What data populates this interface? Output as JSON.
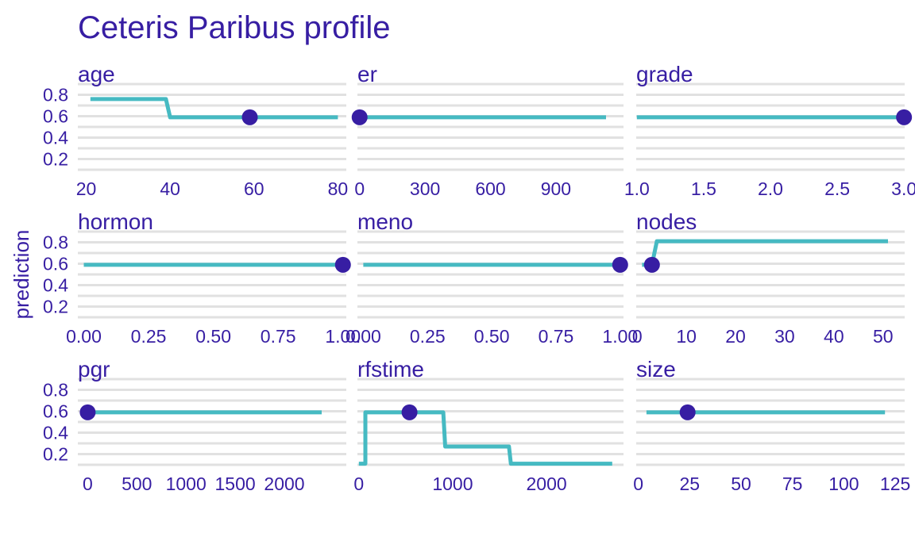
{
  "colors": {
    "line": "#46bac2",
    "point": "#371ea3",
    "text": "#371ea3",
    "grid": "#e1e1e1"
  },
  "chart_data": {
    "type": "line",
    "title": "Ceteris Paribus profile",
    "ylabel": "prediction",
    "ylim": [
      0.1,
      0.9
    ],
    "y_ticks": [
      "0.2",
      "0.4",
      "0.6",
      "0.8"
    ],
    "grid": true,
    "panels": [
      {
        "name": "age",
        "xlim": [
          18,
          82
        ],
        "x_ticks": [
          20,
          40,
          60,
          80
        ],
        "x_tick_labels": [
          "20",
          "40",
          "60",
          "80"
        ],
        "x": [
          21,
          39,
          40,
          80
        ],
        "y": [
          0.76,
          0.76,
          0.59,
          0.59
        ],
        "point": {
          "x": 59,
          "y": 0.59
        }
      },
      {
        "name": "er",
        "xlim": [
          -10,
          1210
        ],
        "x_ticks": [
          0,
          300,
          600,
          900
        ],
        "x_tick_labels": [
          "0",
          "300",
          "600",
          "900"
        ],
        "x": [
          0,
          1130
        ],
        "y": [
          0.59,
          0.59
        ],
        "point": {
          "x": 0,
          "y": 0.59
        }
      },
      {
        "name": "grade",
        "xlim": [
          0.995,
          3.005
        ],
        "x_ticks": [
          1.0,
          1.5,
          2.0,
          2.5,
          3.0
        ],
        "x_tick_labels": [
          "1.0",
          "1.5",
          "2.0",
          "2.5",
          "3.0"
        ],
        "x": [
          1.0,
          3.0
        ],
        "y": [
          0.59,
          0.59
        ],
        "point": {
          "x": 3.0,
          "y": 0.59
        }
      },
      {
        "name": "hormon",
        "xlim": [
          -0.023,
          1.013
        ],
        "x_ticks": [
          0,
          0.25,
          0.5,
          0.75,
          1.0
        ],
        "x_tick_labels": [
          "0.00",
          "0.25",
          "0.50",
          "0.75",
          "1.00"
        ],
        "x": [
          0,
          1
        ],
        "y": [
          0.59,
          0.59
        ],
        "point": {
          "x": 1,
          "y": 0.59
        }
      },
      {
        "name": "meno",
        "xlim": [
          -0.023,
          1.013
        ],
        "x_ticks": [
          0,
          0.25,
          0.5,
          0.75,
          1.0
        ],
        "x_tick_labels": [
          "0.00",
          "0.25",
          "0.50",
          "0.75",
          "1.00"
        ],
        "x": [
          0,
          1
        ],
        "y": [
          0.59,
          0.59
        ],
        "point": {
          "x": 1,
          "y": 0.59
        }
      },
      {
        "name": "nodes",
        "xlim": [
          -0.2,
          54.4
        ],
        "x_ticks": [
          0,
          10,
          20,
          30,
          40,
          50
        ],
        "x_tick_labels": [
          "0",
          "10",
          "20",
          "30",
          "40",
          "50"
        ],
        "x": [
          1,
          3,
          4,
          51
        ],
        "y": [
          0.59,
          0.59,
          0.81,
          0.81
        ],
        "point": {
          "x": 3,
          "y": 0.59
        }
      },
      {
        "name": "pgr",
        "xlim": [
          -100,
          2630
        ],
        "x_ticks": [
          0,
          500,
          1000,
          1500,
          2000
        ],
        "x_tick_labels": [
          "0",
          "500",
          "1000",
          "1500",
          "2000"
        ],
        "x": [
          0,
          2380
        ],
        "y": [
          0.59,
          0.59
        ],
        "point": {
          "x": 0,
          "y": 0.59
        }
      },
      {
        "name": "rfstime",
        "xlim": [
          -15,
          2820
        ],
        "x_ticks": [
          0,
          1000,
          2000
        ],
        "x_tick_labels": [
          "0",
          "1000",
          "2000"
        ],
        "x": [
          0,
          70,
          70,
          900,
          920,
          1600,
          1620,
          2700
        ],
        "y": [
          0.11,
          0.11,
          0.59,
          0.59,
          0.27,
          0.27,
          0.11,
          0.11
        ],
        "point": {
          "x": 540,
          "y": 0.59
        }
      },
      {
        "name": "size",
        "xlim": [
          -1,
          129.6
        ],
        "x_ticks": [
          0,
          25,
          50,
          75,
          100,
          125
        ],
        "x_tick_labels": [
          "0",
          "25",
          "50",
          "75",
          "100",
          "125"
        ],
        "x": [
          4,
          120
        ],
        "y": [
          0.59,
          0.59
        ],
        "point": {
          "x": 24,
          "y": 0.59
        }
      }
    ]
  }
}
